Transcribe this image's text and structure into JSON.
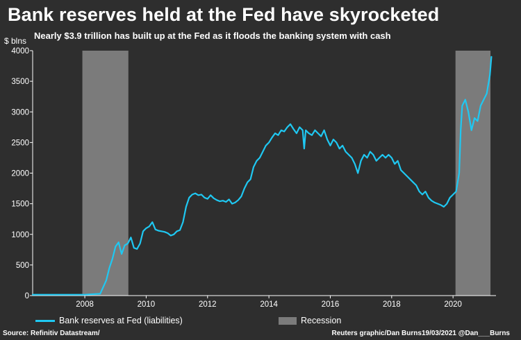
{
  "header": {
    "title": "Bank reserves held at the Fed have skyrocketed",
    "subtitle": "Nearly $3.9 trillion has built up at the Fed as it floods the banking system with cash"
  },
  "footer": {
    "source": "Source: Refinitiv Datastream/",
    "credit": "Reuters graphic/Dan Burns19/03/2021 @Dan___Burns"
  },
  "colors": {
    "background": "#2e2e2e",
    "line": "#1fc8f2",
    "recession": "#7b7b7b",
    "axis": "#ffffff"
  },
  "chart_data": {
    "type": "line",
    "title": "Bank reserves held at the Fed have skyrocketed",
    "ylabel": "$ blns",
    "xlabel": "",
    "xlim": [
      2006.3,
      2021.4
    ],
    "ylim": [
      0,
      4000
    ],
    "x_ticks": [
      2008,
      2010,
      2012,
      2014,
      2016,
      2018,
      2020
    ],
    "y_ticks": [
      0,
      500,
      1000,
      1500,
      2000,
      2500,
      3000,
      3500,
      4000
    ],
    "grid": false,
    "legend_position": "bottom",
    "legend": [
      {
        "label": "Bank reserves at Fed (liabilities)",
        "kind": "line"
      },
      {
        "label": "Recession",
        "kind": "box"
      }
    ],
    "recessions": [
      {
        "start": 2007.92,
        "end": 2009.42
      },
      {
        "start": 2020.08,
        "end": 2021.22
      }
    ],
    "series": [
      {
        "name": "Bank reserves at Fed (liabilities)",
        "points": [
          [
            2006.3,
            15
          ],
          [
            2007.0,
            15
          ],
          [
            2007.5,
            15
          ],
          [
            2008.0,
            15
          ],
          [
            2008.5,
            30
          ],
          [
            2008.7,
            250
          ],
          [
            2008.8,
            450
          ],
          [
            2008.9,
            600
          ],
          [
            2009.0,
            800
          ],
          [
            2009.1,
            870
          ],
          [
            2009.2,
            680
          ],
          [
            2009.3,
            820
          ],
          [
            2009.4,
            850
          ],
          [
            2009.5,
            950
          ],
          [
            2009.6,
            780
          ],
          [
            2009.7,
            760
          ],
          [
            2009.8,
            850
          ],
          [
            2009.9,
            1050
          ],
          [
            2010.0,
            1100
          ],
          [
            2010.1,
            1130
          ],
          [
            2010.2,
            1200
          ],
          [
            2010.3,
            1080
          ],
          [
            2010.4,
            1060
          ],
          [
            2010.5,
            1050
          ],
          [
            2010.6,
            1040
          ],
          [
            2010.7,
            1020
          ],
          [
            2010.8,
            980
          ],
          [
            2010.9,
            1000
          ],
          [
            2011.0,
            1050
          ],
          [
            2011.1,
            1070
          ],
          [
            2011.2,
            1200
          ],
          [
            2011.3,
            1450
          ],
          [
            2011.4,
            1600
          ],
          [
            2011.5,
            1650
          ],
          [
            2011.6,
            1670
          ],
          [
            2011.7,
            1640
          ],
          [
            2011.8,
            1650
          ],
          [
            2011.9,
            1600
          ],
          [
            2012.0,
            1580
          ],
          [
            2012.1,
            1640
          ],
          [
            2012.2,
            1590
          ],
          [
            2012.3,
            1560
          ],
          [
            2012.4,
            1540
          ],
          [
            2012.5,
            1550
          ],
          [
            2012.6,
            1530
          ],
          [
            2012.7,
            1570
          ],
          [
            2012.8,
            1500
          ],
          [
            2012.9,
            1520
          ],
          [
            2013.0,
            1560
          ],
          [
            2013.1,
            1620
          ],
          [
            2013.2,
            1750
          ],
          [
            2013.3,
            1850
          ],
          [
            2013.4,
            1900
          ],
          [
            2013.5,
            2100
          ],
          [
            2013.6,
            2200
          ],
          [
            2013.7,
            2250
          ],
          [
            2013.8,
            2350
          ],
          [
            2013.9,
            2450
          ],
          [
            2014.0,
            2500
          ],
          [
            2014.1,
            2580
          ],
          [
            2014.2,
            2650
          ],
          [
            2014.3,
            2620
          ],
          [
            2014.4,
            2700
          ],
          [
            2014.5,
            2680
          ],
          [
            2014.6,
            2750
          ],
          [
            2014.7,
            2800
          ],
          [
            2014.8,
            2720
          ],
          [
            2014.9,
            2650
          ],
          [
            2015.0,
            2750
          ],
          [
            2015.1,
            2700
          ],
          [
            2015.15,
            2400
          ],
          [
            2015.2,
            2700
          ],
          [
            2015.3,
            2650
          ],
          [
            2015.4,
            2620
          ],
          [
            2015.5,
            2700
          ],
          [
            2015.6,
            2650
          ],
          [
            2015.7,
            2600
          ],
          [
            2015.8,
            2700
          ],
          [
            2015.9,
            2550
          ],
          [
            2016.0,
            2450
          ],
          [
            2016.1,
            2550
          ],
          [
            2016.2,
            2500
          ],
          [
            2016.3,
            2400
          ],
          [
            2016.4,
            2450
          ],
          [
            2016.5,
            2350
          ],
          [
            2016.6,
            2300
          ],
          [
            2016.7,
            2250
          ],
          [
            2016.8,
            2150
          ],
          [
            2016.9,
            2000
          ],
          [
            2017.0,
            2200
          ],
          [
            2017.1,
            2300
          ],
          [
            2017.2,
            2250
          ],
          [
            2017.3,
            2350
          ],
          [
            2017.4,
            2300
          ],
          [
            2017.5,
            2200
          ],
          [
            2017.6,
            2250
          ],
          [
            2017.7,
            2300
          ],
          [
            2017.8,
            2250
          ],
          [
            2017.9,
            2300
          ],
          [
            2018.0,
            2250
          ],
          [
            2018.1,
            2150
          ],
          [
            2018.2,
            2200
          ],
          [
            2018.3,
            2050
          ],
          [
            2018.4,
            2000
          ],
          [
            2018.5,
            1950
          ],
          [
            2018.6,
            1900
          ],
          [
            2018.7,
            1850
          ],
          [
            2018.8,
            1800
          ],
          [
            2018.9,
            1700
          ],
          [
            2019.0,
            1650
          ],
          [
            2019.1,
            1700
          ],
          [
            2019.2,
            1600
          ],
          [
            2019.3,
            1550
          ],
          [
            2019.4,
            1520
          ],
          [
            2019.5,
            1500
          ],
          [
            2019.6,
            1480
          ],
          [
            2019.7,
            1450
          ],
          [
            2019.8,
            1500
          ],
          [
            2019.9,
            1600
          ],
          [
            2020.0,
            1650
          ],
          [
            2020.1,
            1700
          ],
          [
            2020.2,
            2000
          ],
          [
            2020.25,
            2700
          ],
          [
            2020.3,
            3100
          ],
          [
            2020.4,
            3200
          ],
          [
            2020.5,
            3000
          ],
          [
            2020.6,
            2700
          ],
          [
            2020.7,
            2900
          ],
          [
            2020.8,
            2850
          ],
          [
            2020.9,
            3100
          ],
          [
            2021.0,
            3200
          ],
          [
            2021.1,
            3300
          ],
          [
            2021.2,
            3600
          ],
          [
            2021.25,
            3900
          ]
        ]
      }
    ]
  }
}
